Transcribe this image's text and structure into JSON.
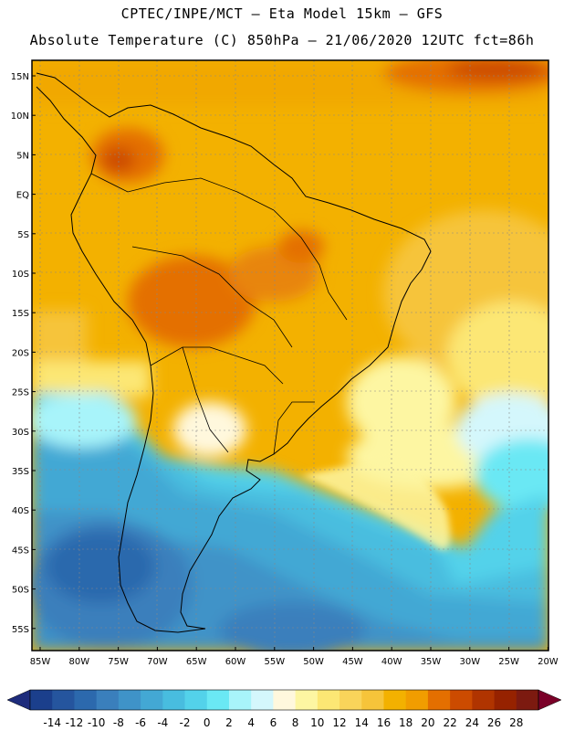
{
  "header": {
    "line1": "CPTEC/INPE/MCT –  Eta Model 15km – GFS",
    "line2": "Absolute Temperature (C) 850hPa – 21/06/2020 12UTC fct=86h"
  },
  "map": {
    "lat_labels": [
      "15N",
      "10N",
      "5N",
      "EQ",
      "5S",
      "10S",
      "15S",
      "20S",
      "25S",
      "30S",
      "35S",
      "40S",
      "45S",
      "50S",
      "55S"
    ],
    "lon_labels": [
      "85W",
      "80W",
      "75W",
      "70W",
      "65W",
      "60W",
      "55W",
      "50W",
      "45W",
      "40W",
      "35W",
      "30W",
      "25W",
      "20W"
    ]
  },
  "colorbar": {
    "labels": [
      "-14",
      "-12",
      "-10",
      "-8",
      "-6",
      "-4",
      "-2",
      "0",
      "2",
      "4",
      "6",
      "8",
      "10",
      "12",
      "14",
      "16",
      "18",
      "20",
      "22",
      "24",
      "26",
      "28"
    ],
    "colors": [
      "#1b3f8c",
      "#25559e",
      "#2c69ad",
      "#3a7fbc",
      "#3f93c8",
      "#43a8d4",
      "#48bddf",
      "#53d2ea",
      "#6ae8f4",
      "#a8f4fa",
      "#d4f7fc",
      "#fff8dd",
      "#fdf6a2",
      "#fce774",
      "#f9d45a",
      "#f6c43a",
      "#f3b100",
      "#f19d00",
      "#e46f00",
      "#cc4b00",
      "#b03400",
      "#962200",
      "#7c1a10"
    ],
    "low_arrow_color": "#1e2c7c",
    "high_arrow_color": "#7a0028"
  }
}
